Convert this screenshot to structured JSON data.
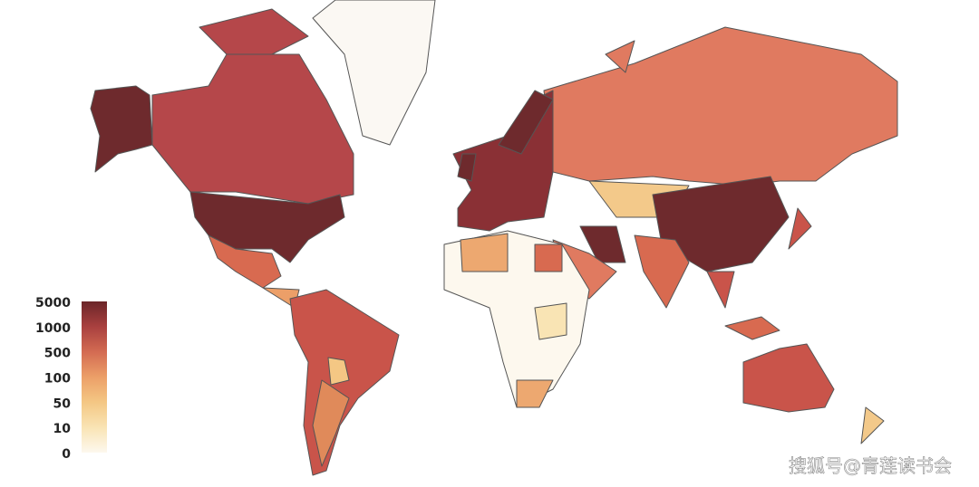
{
  "legend": {
    "ticks": [
      5000,
      1000,
      500,
      100,
      50,
      10,
      0
    ],
    "colors": [
      "#6b2528",
      "#a9403f",
      "#d36b52",
      "#ec9f68",
      "#f4c784",
      "#f9e4b4",
      "#fdf8ee"
    ]
  },
  "watermark": "搜狐号@青莲读书会"
}
